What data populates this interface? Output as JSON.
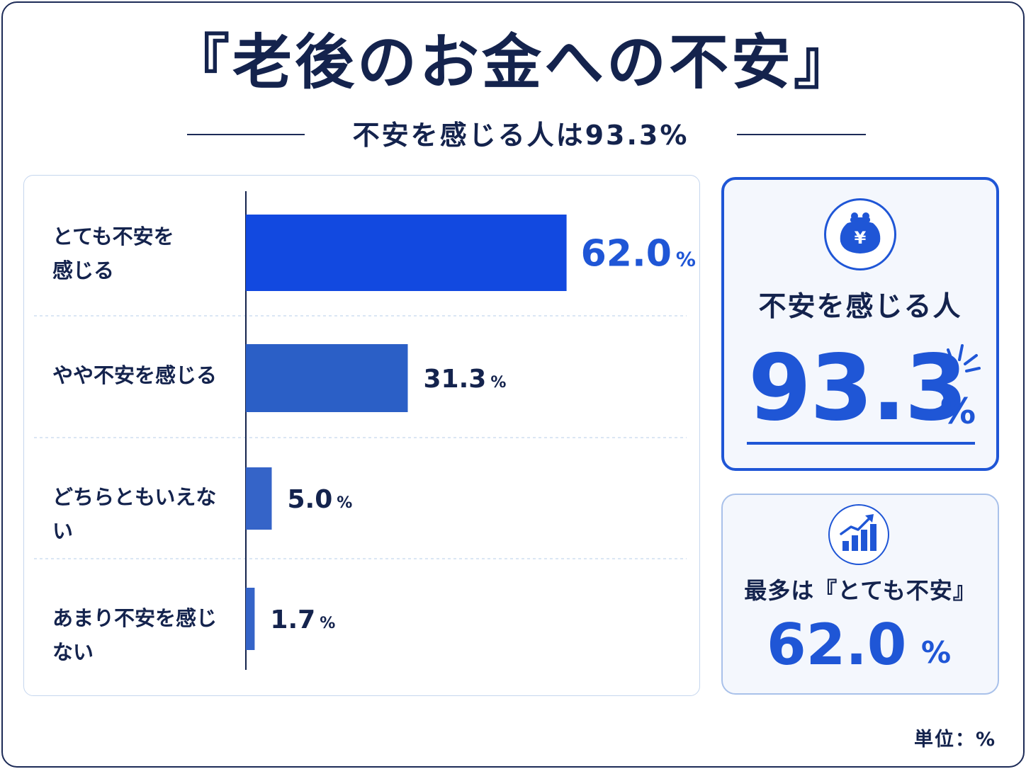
{
  "header": {
    "title": "『老後のお金への不安』",
    "subtitle": "不安を感じる人は93.3%"
  },
  "chart_data": {
    "type": "bar",
    "orientation": "horizontal",
    "categories": [
      "とても不安を感じる",
      "やや不安を感じる",
      "どちらともいえない",
      "あまり不安を感じない"
    ],
    "values": [
      62.0,
      31.3,
      5.0,
      1.7
    ],
    "value_labels": [
      "62.0",
      "31.3",
      "5.0",
      "1.7"
    ],
    "value_unit": "%",
    "xlim": [
      0,
      100
    ],
    "bar_colors": [
      "#1249e0",
      "#2b5fc6",
      "#3564c8",
      "#3564c8"
    ],
    "highlight_label_color": "#1f56d6",
    "label_color": "#14234d",
    "grid": false,
    "title": "",
    "xlabel": "",
    "ylabel": ""
  },
  "labels": {
    "cat0_line1": "とても不安を",
    "cat0_line2": "感じる",
    "cat1": "やや不安を感じる",
    "cat2": "どちらともいえない",
    "cat3": "あまり不安を感じない"
  },
  "cards": {
    "anxious": {
      "icon": "coin-purse-yen-icon",
      "label": "不安を感じる人",
      "value": "93.3",
      "unit": "%"
    },
    "most": {
      "icon": "bar-chart-rising-icon",
      "label": "最多は『とても不安』",
      "value": "62.0",
      "unit": "%"
    }
  },
  "footer": {
    "unit_note": "単位：%"
  },
  "colors": {
    "navy": "#14234d",
    "accent": "#1f56d6",
    "panel_border": "#c5d6ee"
  }
}
